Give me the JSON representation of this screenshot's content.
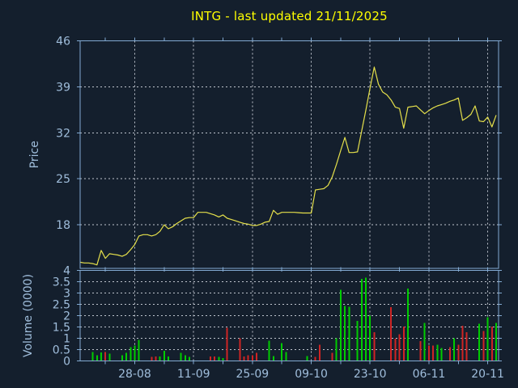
{
  "title": "INTG - last updated 21/11/2025",
  "colors": {
    "background": "#141f2d",
    "title_text": "#ffff00",
    "axis_text": "#a0bedc",
    "border": "#82aad2",
    "grid": "#bfc5ce",
    "price_line": "#e5e04b",
    "volume_up": "#00cc00",
    "volume_down": "#cf2424"
  },
  "x_axis": {
    "tick_labels": [
      "28-08",
      "11-09",
      "25-09",
      "09-10",
      "23-10",
      "06-11",
      "20-11"
    ],
    "tick_indices": [
      13,
      27,
      41,
      55,
      69,
      83,
      97
    ],
    "minor_tick_indices": [
      6,
      20,
      34,
      48,
      62,
      76,
      90
    ]
  },
  "chart_data": [
    {
      "type": "line",
      "name": "price",
      "title": "INTG - last updated 21/11/2025",
      "ylabel": "Price",
      "yticks": [
        46,
        39,
        32,
        25,
        18
      ],
      "ylim": [
        11.4,
        46
      ],
      "grid": true,
      "values": [
        12.3,
        12.2,
        12.2,
        12.1,
        11.9,
        14.1,
        12.9,
        13.6,
        13.5,
        13.4,
        13.2,
        13.5,
        14.2,
        15.0,
        16.3,
        16.5,
        16.5,
        16.3,
        16.5,
        17.0,
        18.0,
        17.4,
        17.7,
        18.2,
        18.6,
        19.0,
        19.1,
        19.1,
        19.9,
        19.9,
        19.9,
        19.7,
        19.5,
        19.2,
        19.5,
        19.0,
        18.8,
        18.6,
        18.4,
        18.2,
        18.1,
        17.9,
        17.9,
        18.1,
        18.4,
        18.5,
        20.2,
        19.6,
        19.9,
        19.9,
        19.9,
        19.9,
        19.85,
        19.8,
        19.8,
        19.8,
        23.3,
        23.4,
        23.5,
        24.0,
        25.3,
        27.2,
        29.3,
        31.3,
        29.0,
        29.0,
        29.1,
        32.3,
        35.5,
        38.8,
        42.0,
        39.4,
        38.2,
        37.8,
        37.0,
        35.9,
        35.7,
        32.7,
        35.9,
        36.0,
        36.1,
        35.5,
        34.9,
        35.4,
        35.8,
        36.1,
        36.3,
        36.5,
        36.8,
        37.0,
        37.3,
        33.9,
        34.3,
        34.8,
        36.1,
        33.8,
        33.7,
        34.4,
        32.9,
        34.7
      ]
    },
    {
      "type": "bar",
      "name": "volume",
      "ylabel": "Volume (0000)",
      "yticks": [
        4,
        3.5,
        3,
        2.5,
        2,
        1.5,
        1,
        0.5,
        0
      ],
      "ylim": [
        0,
        4
      ],
      "grid": true,
      "bars": [
        [
          3,
          0.4,
          "g"
        ],
        [
          4,
          0.25,
          "g"
        ],
        [
          5,
          0.37,
          "g"
        ],
        [
          6,
          0.4,
          "r"
        ],
        [
          7,
          0.32,
          "g"
        ],
        [
          10,
          0.25,
          "g"
        ],
        [
          11,
          0.35,
          "g"
        ],
        [
          12,
          0.61,
          "g"
        ],
        [
          13,
          0.68,
          "g"
        ],
        [
          14,
          0.92,
          "g"
        ],
        [
          17,
          0.17,
          "r"
        ],
        [
          18,
          0.19,
          "r"
        ],
        [
          19,
          0.2,
          "g"
        ],
        [
          20,
          0.45,
          "g"
        ],
        [
          21,
          0.19,
          "g"
        ],
        [
          24,
          0.35,
          "g"
        ],
        [
          25,
          0.25,
          "g"
        ],
        [
          26,
          0.17,
          "g"
        ],
        [
          31,
          0.2,
          "r"
        ],
        [
          32,
          0.19,
          "r"
        ],
        [
          33,
          0.17,
          "g"
        ],
        [
          34,
          0.13,
          "g"
        ],
        [
          35,
          1.47,
          "r"
        ],
        [
          38,
          1.0,
          "r"
        ],
        [
          39,
          0.19,
          "r"
        ],
        [
          40,
          0.25,
          "r"
        ],
        [
          41,
          0.25,
          "r"
        ],
        [
          42,
          0.35,
          "r"
        ],
        [
          45,
          0.9,
          "g"
        ],
        [
          46,
          0.22,
          "g"
        ],
        [
          48,
          0.79,
          "g"
        ],
        [
          49,
          0.4,
          "g"
        ],
        [
          54,
          0.22,
          "g"
        ],
        [
          56,
          0.17,
          "r"
        ],
        [
          57,
          0.72,
          "r"
        ],
        [
          60,
          0.35,
          "r"
        ],
        [
          61,
          1.0,
          "g"
        ],
        [
          62,
          3.14,
          "g"
        ],
        [
          63,
          2.43,
          "g"
        ],
        [
          64,
          2.39,
          "g"
        ],
        [
          66,
          1.77,
          "g"
        ],
        [
          67,
          3.62,
          "g"
        ],
        [
          68,
          3.68,
          "g"
        ],
        [
          69,
          2.0,
          "g"
        ],
        [
          70,
          1.27,
          "r"
        ],
        [
          74,
          2.37,
          "r"
        ],
        [
          75,
          0.99,
          "r"
        ],
        [
          76,
          1.17,
          "r"
        ],
        [
          77,
          1.52,
          "r"
        ],
        [
          78,
          3.2,
          "g"
        ],
        [
          81,
          0.87,
          "r"
        ],
        [
          82,
          1.67,
          "g"
        ],
        [
          83,
          0.68,
          "r"
        ],
        [
          84,
          0.68,
          "r"
        ],
        [
          85,
          0.72,
          "g"
        ],
        [
          86,
          0.58,
          "g"
        ],
        [
          88,
          0.61,
          "r"
        ],
        [
          89,
          1.0,
          "g"
        ],
        [
          90,
          0.72,
          "r"
        ],
        [
          91,
          1.56,
          "r"
        ],
        [
          92,
          1.27,
          "r"
        ],
        [
          95,
          1.65,
          "g"
        ],
        [
          96,
          1.32,
          "r"
        ],
        [
          97,
          1.92,
          "g"
        ],
        [
          98,
          1.51,
          "r"
        ],
        [
          99,
          1.68,
          "g"
        ]
      ]
    }
  ]
}
